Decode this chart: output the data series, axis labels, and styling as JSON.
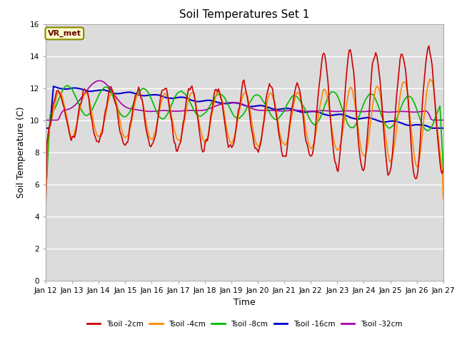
{
  "title": "Soil Temperatures Set 1",
  "xlabel": "Time",
  "ylabel": "Soil Temperature (C)",
  "ylim": [
    0,
    16
  ],
  "yticks": [
    0,
    2,
    4,
    6,
    8,
    10,
    12,
    14,
    16
  ],
  "bg_color": "#dcdcdc",
  "annotation_text": "VR_met",
  "annotation_bg": "#ffffcc",
  "annotation_border": "#888800",
  "series_colors": [
    "#cc0000",
    "#ff8800",
    "#00bb00",
    "#0000cc",
    "#aa00aa"
  ],
  "series_labels": [
    "Tsoil -2cm",
    "Tsoil -4cm",
    "Tsoil -8cm",
    "Tsoil -16cm",
    "Tsoil -32cm"
  ],
  "x_tick_labels": [
    "Jan 12",
    "Jan 13",
    "Jan 14",
    "Jan 15",
    "Jan 16",
    "Jan 17",
    "Jan 18",
    "Jan 19",
    "Jan 20",
    "Jan 21",
    "Jan 22",
    "Jan 23",
    "Jan 24",
    "Jan 25",
    "Jan 26",
    "Jan 27"
  ],
  "linewidth": 1.2
}
